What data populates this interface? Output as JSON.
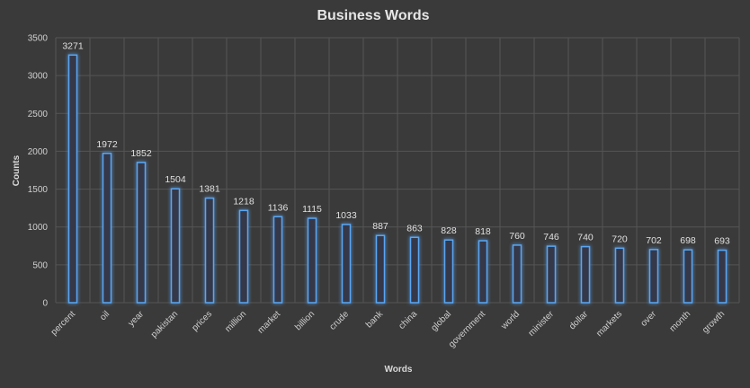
{
  "chart_data": {
    "type": "bar",
    "title": "Business Words",
    "xlabel": "Words",
    "ylabel": "Counts",
    "ylim": [
      0,
      3500
    ],
    "yticks": [
      0,
      500,
      1000,
      1500,
      2000,
      2500,
      3000,
      3500
    ],
    "grid": true,
    "categories": [
      "percent",
      "oil",
      "year",
      "pakistan",
      "prices",
      "million",
      "market",
      "billion",
      "crude",
      "bank",
      "china",
      "global",
      "government",
      "world",
      "minister",
      "dollar",
      "markets",
      "over",
      "month",
      "growth"
    ],
    "values": [
      3271,
      1972,
      1852,
      1504,
      1381,
      1218,
      1136,
      1115,
      1033,
      887,
      863,
      828,
      818,
      760,
      746,
      740,
      720,
      702,
      698,
      693
    ],
    "colors": {
      "background": "#3a3a3a",
      "bar_stroke": "#5aa6f2",
      "bar_fill": "#35394a",
      "grid": "#555555",
      "text": "#d9d9d9"
    }
  }
}
